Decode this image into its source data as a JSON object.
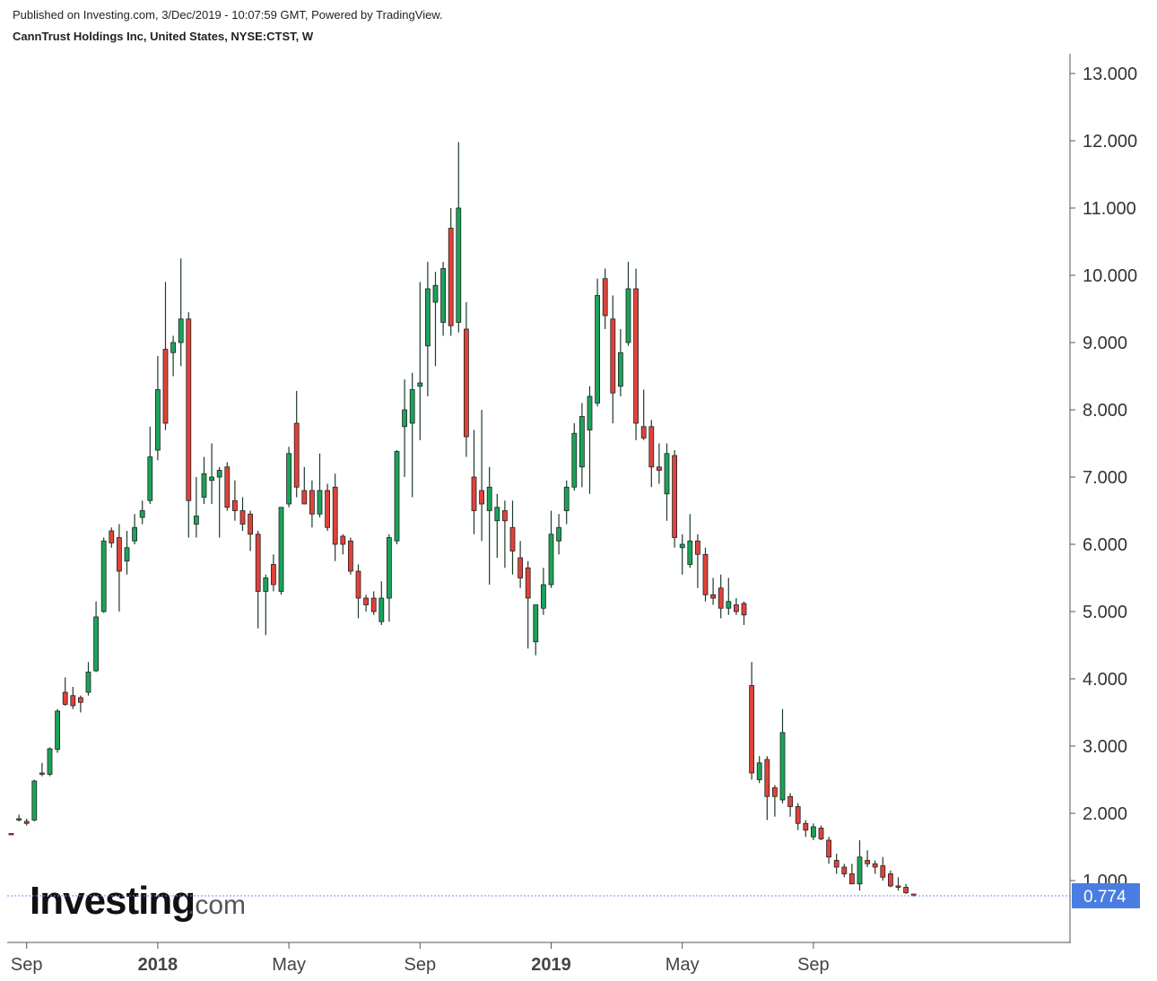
{
  "header": {
    "published": "Published on Investing.com, 3/Dec/2019 - 10:07:59 GMT, Powered by TradingView.",
    "symbol": "CannTrust Holdings Inc, United States, NYSE:CTST, W"
  },
  "watermark": {
    "brand": "Investing",
    "domain": ".com"
  },
  "colors": {
    "up": "#1aa35a",
    "down": "#e0423a",
    "wick": "#1d3b2a",
    "axis": "#555555",
    "last_price_bg": "#4a7de3",
    "last_price_line": "#6f8ff0"
  },
  "chart_data": {
    "type": "candlestick",
    "interval": "W",
    "ylim": [
      0.2,
      13.2
    ],
    "y_ticks": [
      "1.000",
      "2.000",
      "3.000",
      "4.000",
      "5.000",
      "6.000",
      "7.000",
      "8.000",
      "9.000",
      "10.000",
      "11.000",
      "12.000",
      "13.000"
    ],
    "x_ticks": [
      {
        "label": "Sep",
        "week": 2,
        "year": false
      },
      {
        "label": "2018",
        "week": 19,
        "year": true
      },
      {
        "label": "May",
        "week": 36,
        "year": false
      },
      {
        "label": "Sep",
        "week": 53,
        "year": false
      },
      {
        "label": "2019",
        "week": 70,
        "year": true
      },
      {
        "label": "May",
        "week": 87,
        "year": false
      },
      {
        "label": "Sep",
        "week": 104,
        "year": false
      }
    ],
    "last_price": "0.774",
    "last_value": 0.774,
    "candles": [
      [
        1.7,
        1.7,
        1.69,
        1.69
      ],
      [
        1.9,
        1.98,
        1.88,
        1.92
      ],
      [
        1.88,
        1.92,
        1.82,
        1.85
      ],
      [
        1.9,
        2.5,
        1.88,
        2.48
      ],
      [
        2.6,
        2.75,
        2.55,
        2.58
      ],
      [
        2.58,
        2.98,
        2.55,
        2.96
      ],
      [
        2.95,
        3.55,
        2.9,
        3.52
      ],
      [
        3.8,
        4.02,
        3.6,
        3.62
      ],
      [
        3.75,
        3.88,
        3.55,
        3.6
      ],
      [
        3.72,
        3.75,
        3.5,
        3.65
      ],
      [
        3.8,
        4.25,
        3.75,
        4.1
      ],
      [
        4.12,
        5.15,
        4.1,
        4.92
      ],
      [
        5.0,
        6.1,
        4.98,
        6.05
      ],
      [
        6.2,
        6.25,
        5.95,
        6.02
      ],
      [
        6.1,
        6.3,
        5.0,
        5.6
      ],
      [
        5.75,
        6.2,
        5.55,
        5.95
      ],
      [
        6.05,
        6.45,
        6.0,
        6.25
      ],
      [
        6.4,
        6.65,
        6.3,
        6.5
      ],
      [
        6.65,
        7.75,
        6.6,
        7.3
      ],
      [
        7.4,
        8.8,
        7.25,
        8.3
      ],
      [
        8.9,
        9.9,
        7.7,
        7.8
      ],
      [
        8.85,
        9.1,
        8.5,
        9.0
      ],
      [
        9.0,
        10.25,
        8.65,
        9.35
      ],
      [
        9.35,
        9.45,
        6.1,
        6.65
      ],
      [
        6.3,
        7.0,
        6.1,
        6.42
      ],
      [
        6.7,
        7.3,
        6.6,
        7.05
      ],
      [
        6.95,
        7.5,
        6.6,
        7.0
      ],
      [
        7.0,
        7.15,
        6.1,
        7.1
      ],
      [
        7.15,
        7.22,
        6.5,
        6.55
      ],
      [
        6.65,
        6.95,
        6.35,
        6.5
      ],
      [
        6.5,
        6.7,
        6.2,
        6.3
      ],
      [
        6.45,
        6.5,
        5.9,
        6.15
      ],
      [
        6.15,
        6.2,
        4.75,
        5.3
      ],
      [
        5.3,
        5.55,
        4.65,
        5.5
      ],
      [
        5.7,
        5.85,
        5.3,
        5.4
      ],
      [
        5.3,
        6.55,
        5.25,
        6.55
      ],
      [
        6.6,
        7.45,
        6.55,
        7.35
      ],
      [
        7.8,
        8.28,
        6.7,
        6.85
      ],
      [
        6.8,
        7.15,
        6.6,
        6.6
      ],
      [
        6.8,
        6.95,
        6.25,
        6.45
      ],
      [
        6.45,
        7.35,
        6.4,
        6.8
      ],
      [
        6.8,
        6.9,
        6.2,
        6.25
      ],
      [
        6.85,
        7.05,
        5.75,
        6.0
      ],
      [
        6.12,
        6.15,
        5.85,
        6.0
      ],
      [
        6.05,
        6.1,
        5.55,
        5.6
      ],
      [
        5.6,
        5.7,
        4.9,
        5.2
      ],
      [
        5.2,
        5.25,
        5.0,
        5.1
      ],
      [
        5.2,
        5.3,
        4.95,
        5.0
      ],
      [
        4.85,
        5.45,
        4.8,
        5.2
      ],
      [
        5.2,
        6.15,
        4.85,
        6.1
      ],
      [
        6.05,
        7.4,
        6.0,
        7.38
      ],
      [
        7.75,
        8.45,
        7.0,
        8.0
      ],
      [
        7.8,
        8.55,
        6.7,
        8.3
      ],
      [
        8.35,
        9.9,
        7.55,
        8.4
      ],
      [
        8.95,
        10.2,
        8.2,
        9.8
      ],
      [
        9.6,
        10.05,
        8.65,
        9.85
      ],
      [
        9.3,
        10.2,
        9.1,
        10.1
      ],
      [
        10.7,
        11.0,
        9.1,
        9.25
      ],
      [
        9.3,
        11.98,
        9.15,
        11.0
      ],
      [
        9.2,
        9.6,
        7.3,
        7.6
      ],
      [
        7.0,
        7.7,
        6.15,
        6.5
      ],
      [
        6.8,
        8.0,
        6.05,
        6.6
      ],
      [
        6.5,
        7.15,
        5.4,
        6.85
      ],
      [
        6.35,
        6.75,
        5.8,
        6.55
      ],
      [
        6.5,
        6.65,
        5.65,
        6.35
      ],
      [
        6.25,
        6.65,
        5.55,
        5.9
      ],
      [
        5.8,
        6.05,
        5.35,
        5.5
      ],
      [
        5.65,
        5.75,
        4.45,
        5.2
      ],
      [
        4.55,
        5.1,
        4.35,
        5.1
      ],
      [
        5.05,
        5.65,
        4.95,
        5.4
      ],
      [
        5.4,
        6.5,
        5.35,
        6.15
      ],
      [
        6.05,
        6.45,
        5.85,
        6.25
      ],
      [
        6.5,
        6.95,
        6.3,
        6.85
      ],
      [
        6.85,
        7.8,
        6.8,
        7.65
      ],
      [
        7.15,
        8.1,
        6.85,
        7.9
      ],
      [
        7.7,
        8.35,
        6.75,
        8.2
      ],
      [
        8.1,
        9.95,
        8.05,
        9.7
      ],
      [
        9.95,
        10.1,
        9.2,
        9.4
      ],
      [
        9.35,
        9.7,
        7.8,
        8.25
      ],
      [
        8.35,
        9.2,
        8.2,
        8.85
      ],
      [
        9.0,
        10.2,
        8.95,
        9.8
      ],
      [
        9.8,
        10.1,
        7.55,
        7.8
      ],
      [
        7.75,
        8.3,
        7.55,
        7.58
      ],
      [
        7.75,
        7.85,
        6.85,
        7.15
      ],
      [
        7.15,
        7.5,
        6.9,
        7.1
      ],
      [
        6.75,
        7.5,
        6.35,
        7.35
      ],
      [
        7.32,
        7.4,
        5.95,
        6.1
      ],
      [
        5.95,
        6.15,
        5.55,
        6.0
      ],
      [
        5.7,
        6.45,
        5.65,
        6.05
      ],
      [
        6.05,
        6.15,
        5.35,
        5.85
      ],
      [
        5.85,
        5.95,
        5.15,
        5.25
      ],
      [
        5.25,
        5.5,
        5.1,
        5.2
      ],
      [
        5.35,
        5.55,
        4.9,
        5.05
      ],
      [
        5.05,
        5.5,
        4.95,
        5.15
      ],
      [
        5.1,
        5.2,
        4.95,
        5.0
      ],
      [
        5.12,
        5.15,
        4.8,
        4.95
      ],
      [
        3.9,
        4.25,
        2.5,
        2.6
      ],
      [
        2.5,
        2.85,
        2.45,
        2.75
      ],
      [
        2.8,
        2.85,
        1.9,
        2.25
      ],
      [
        2.38,
        2.42,
        1.95,
        2.25
      ],
      [
        2.2,
        3.55,
        2.15,
        3.2
      ],
      [
        2.25,
        2.3,
        1.95,
        2.1
      ],
      [
        2.1,
        2.15,
        1.75,
        1.85
      ],
      [
        1.85,
        1.9,
        1.65,
        1.75
      ],
      [
        1.65,
        1.85,
        1.6,
        1.8
      ],
      [
        1.78,
        1.82,
        1.6,
        1.62
      ],
      [
        1.6,
        1.65,
        1.25,
        1.35
      ],
      [
        1.3,
        1.4,
        1.1,
        1.2
      ],
      [
        1.2,
        1.25,
        1.05,
        1.1
      ],
      [
        1.1,
        1.25,
        0.95,
        0.95
      ],
      [
        0.95,
        1.6,
        0.85,
        1.35
      ],
      [
        1.3,
        1.45,
        1.2,
        1.25
      ],
      [
        1.25,
        1.3,
        1.1,
        1.2
      ],
      [
        1.22,
        1.35,
        1.0,
        1.05
      ],
      [
        1.1,
        1.15,
        0.9,
        0.92
      ],
      [
        0.92,
        1.05,
        0.85,
        0.9
      ],
      [
        0.9,
        0.95,
        0.8,
        0.82
      ],
      [
        0.8,
        0.8,
        0.77,
        0.774
      ]
    ]
  }
}
